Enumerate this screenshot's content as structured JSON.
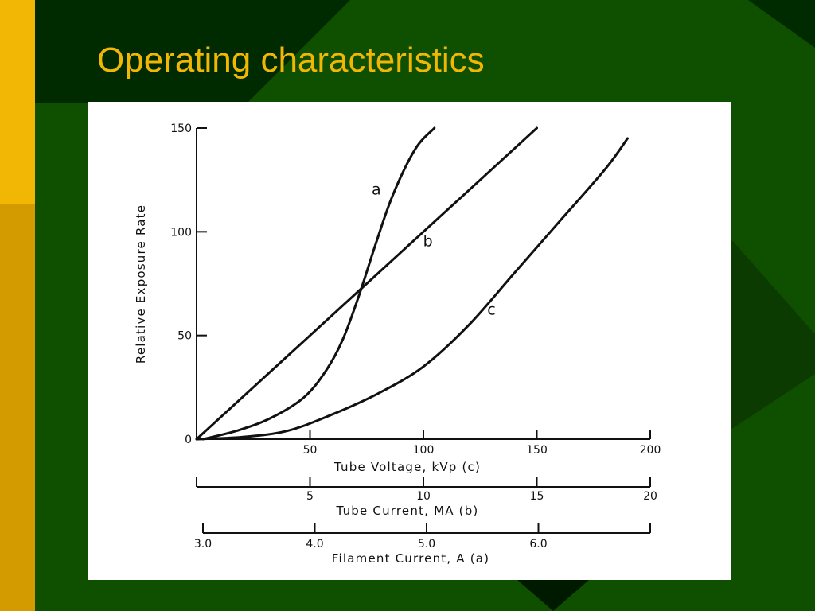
{
  "slide": {
    "title": "Operating characteristics",
    "colors": {
      "background": "#0f4f00",
      "title_text": "#f2b705",
      "left_bar_top": "#f2b705",
      "left_bar_bottom": "#d39b00",
      "dark_band": "#002200"
    }
  },
  "chart_data": {
    "type": "line",
    "ylabel": "Relative Exposure Rate",
    "ylim": [
      0,
      150
    ],
    "yticks": [
      "0",
      "50",
      "100",
      "150"
    ],
    "x_axes": [
      {
        "key": "c",
        "label": "Tube Voltage, kVp (c)",
        "range": [
          0,
          200
        ],
        "ticks": [
          {
            "label": "50",
            "value": 50
          },
          {
            "label": "100",
            "value": 100
          },
          {
            "label": "150",
            "value": 150
          },
          {
            "label": "200",
            "value": 200
          }
        ]
      },
      {
        "key": "b",
        "label": "Tube Current, MA (b)",
        "range": [
          0,
          20
        ],
        "ticks": [
          {
            "label": "5",
            "value": 5
          },
          {
            "label": "10",
            "value": 10
          },
          {
            "label": "15",
            "value": 15
          },
          {
            "label": "20",
            "value": 20
          }
        ]
      },
      {
        "key": "a",
        "label": "Filament Current, A (a)",
        "range": [
          3.0,
          7.0
        ],
        "ticks": [
          {
            "label": "3.0",
            "value": 3.0
          },
          {
            "label": "4.0",
            "value": 4.0
          },
          {
            "label": "5.0",
            "value": 5.0
          },
          {
            "label": "6.0",
            "value": 6.0
          }
        ]
      }
    ],
    "series": [
      {
        "name": "a",
        "axis": "a",
        "label_at": [
          4.55,
          118
        ],
        "x": [
          3.0,
          3.3,
          3.6,
          3.9,
          4.1,
          4.25,
          4.4,
          4.55,
          4.7,
          4.9,
          5.07
        ],
        "y": [
          0,
          4,
          10,
          20,
          33,
          48,
          70,
          95,
          118,
          140,
          150
        ]
      },
      {
        "name": "b",
        "axis": "b",
        "label_at": [
          10.2,
          93
        ],
        "x": [
          0,
          2.5,
          5,
          7.5,
          10,
          12.5,
          15
        ],
        "y": [
          0,
          25,
          50,
          75,
          100,
          125,
          150
        ]
      },
      {
        "name": "c",
        "axis": "c",
        "label_at": [
          130,
          60
        ],
        "x": [
          0,
          20,
          40,
          60,
          80,
          100,
          120,
          140,
          160,
          180,
          190
        ],
        "y": [
          0,
          1,
          4,
          12,
          22,
          35,
          55,
          80,
          105,
          130,
          145
        ]
      }
    ]
  }
}
